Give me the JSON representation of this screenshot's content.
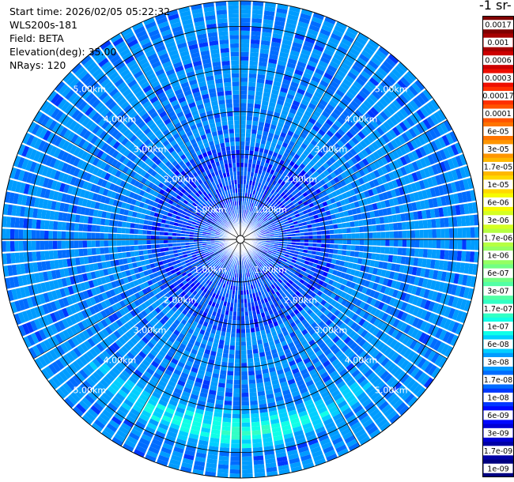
{
  "header": {
    "start_time": "Start time: 2026/02/05 05:22:32",
    "instrument": "WLS200s-181",
    "field": "Field: BETA",
    "elevation": "Elevation(deg): 35.00",
    "nrays": "NRays: 120"
  },
  "colorbar": {
    "unit_fragment": "-1 sr-",
    "labels": [
      "0.0017",
      "0.001",
      "0.0006",
      "0.0003",
      "0.00017",
      "0.0001",
      "6e-05",
      "3e-05",
      "1.7e-05",
      "1e-05",
      "6e-06",
      "3e-06",
      "1.7e-06",
      "1e-06",
      "6e-07",
      "3e-07",
      "1.7e-07",
      "1e-07",
      "6e-08",
      "3e-08",
      "1.7e-08",
      "1e-08",
      "6e-09",
      "3e-09",
      "1.7e-09",
      "1e-09"
    ],
    "colors": [
      "#7f0000",
      "#a60000",
      "#cc0000",
      "#ee0e00",
      "#ff2f00",
      "#ff5300",
      "#ff7400",
      "#ff9600",
      "#ffb800",
      "#ffd900",
      "#f6fb00",
      "#d5ff22",
      "#b5ff42",
      "#95ff62",
      "#72ff84",
      "#52ffa5",
      "#32ffc5",
      "#10ffe7",
      "#00cfff",
      "#009cff",
      "#006cff",
      "#0038ff",
      "#0008ff",
      "#0000d4",
      "#0000a6",
      "#000080"
    ]
  },
  "chart_data": {
    "type": "heatmap",
    "projection": "polar PPI",
    "field": "BETA",
    "elevation_deg": 35.0,
    "n_rays": 120,
    "range_rings_km": [
      1,
      2,
      3,
      4,
      5
    ],
    "range_ring_labels": [
      "1.00km",
      "2.00km",
      "3.00km",
      "4.00km",
      "5.00km"
    ],
    "max_range_km": 5.6,
    "color_scale": "log",
    "value_range": [
      1e-09,
      0.0017
    ],
    "description_values": {
      "background_beta": 3e-08,
      "near_field_beta": 1e-08,
      "enhanced_band_range_km": [
        4.0,
        5.0
      ],
      "enhanced_band_azimuth_deg": [
        120,
        245
      ],
      "enhanced_band_beta": 1.7e-07
    }
  }
}
